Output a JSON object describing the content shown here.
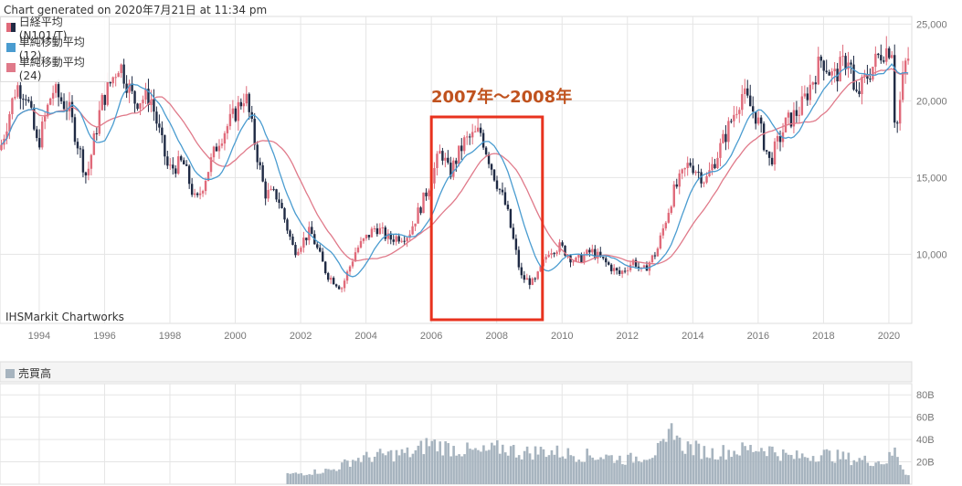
{
  "header": {
    "generated": "Chart generated on 2020年7月21日 at 11:34 pm"
  },
  "legend": [
    {
      "label": "日経平均(N101/T)",
      "color": "#1f2a44",
      "color2": "#e06a7a"
    },
    {
      "label": "単純移動平均 (12)",
      "color": "#4a9cd0"
    },
    {
      "label": "単純移動平均 (24)",
      "color": "#e07a8a"
    }
  ],
  "source": "IHSMarkit Chartworks",
  "annotation": {
    "text": "2007年〜2008年",
    "color": "#e8321e",
    "text_color": "#c0521e"
  },
  "volume_legend": "売買高",
  "colors": {
    "up": "#e06a7a",
    "down": "#1f2a44",
    "ma12": "#4a9cd0",
    "ma24": "#e07a8a",
    "volume": "#a7b4bf",
    "grid": "#e5e5e5"
  },
  "chart_data": [
    {
      "type": "candlestick",
      "title": "",
      "x_ticks": [
        "1994",
        "1996",
        "1998",
        "2000",
        "2002",
        "2004",
        "2006",
        "2008",
        "2010",
        "2012",
        "2014",
        "2016",
        "2018",
        "2020"
      ],
      "y_ticks": [
        "10,000",
        "15,000",
        "20,000",
        "25,000"
      ],
      "ylim": [
        5500,
        25500
      ],
      "xlim": [
        1992.8,
        2020.7
      ],
      "annotation_range": [
        2006.0,
        2009.4
      ],
      "price_anchors": [
        [
          1992.8,
          16800
        ],
        [
          1993.3,
          21000
        ],
        [
          1993.6,
          20500
        ],
        [
          1993.95,
          17000
        ],
        [
          1994.4,
          20700
        ],
        [
          1994.9,
          19500
        ],
        [
          1995.45,
          15000
        ],
        [
          1995.9,
          19800
        ],
        [
          1996.45,
          22500
        ],
        [
          1996.9,
          20000
        ],
        [
          1997.4,
          20300
        ],
        [
          1997.95,
          15500
        ],
        [
          1998.4,
          16000
        ],
        [
          1998.8,
          13300
        ],
        [
          1999.5,
          17500
        ],
        [
          1999.95,
          19000
        ],
        [
          2000.3,
          20500
        ],
        [
          2000.9,
          14000
        ],
        [
          2001.3,
          13800
        ],
        [
          2001.8,
          10200
        ],
        [
          2002.3,
          11500
        ],
        [
          2002.8,
          8700
        ],
        [
          2003.25,
          7800
        ],
        [
          2003.7,
          10300
        ],
        [
          2004.3,
          11800
        ],
        [
          2004.7,
          11000
        ],
        [
          2005.3,
          11300
        ],
        [
          2005.75,
          13500
        ],
        [
          2006.3,
          16800
        ],
        [
          2006.55,
          15200
        ],
        [
          2007.0,
          17300
        ],
        [
          2007.5,
          18000
        ],
        [
          2007.9,
          15300
        ],
        [
          2008.3,
          13000
        ],
        [
          2008.75,
          8500
        ],
        [
          2009.15,
          8100
        ],
        [
          2009.6,
          10300
        ],
        [
          2009.95,
          10500
        ],
        [
          2010.4,
          9500
        ],
        [
          2010.9,
          10200
        ],
        [
          2011.3,
          9500
        ],
        [
          2011.75,
          8700
        ],
        [
          2012.2,
          9600
        ],
        [
          2012.45,
          8800
        ],
        [
          2012.9,
          10200
        ],
        [
          2013.4,
          14000
        ],
        [
          2013.9,
          16000
        ],
        [
          2014.4,
          14800
        ],
        [
          2014.95,
          17500
        ],
        [
          2015.5,
          20500
        ],
        [
          2015.95,
          19000
        ],
        [
          2016.35,
          16000
        ],
        [
          2016.85,
          18500
        ],
        [
          2017.3,
          19500
        ],
        [
          2017.95,
          22800
        ],
        [
          2018.3,
          21500
        ],
        [
          2018.8,
          23000
        ],
        [
          2018.95,
          20000
        ],
        [
          2019.3,
          21500
        ],
        [
          2019.8,
          23300
        ],
        [
          2020.1,
          23500
        ],
        [
          2020.2,
          17500
        ],
        [
          2020.45,
          21800
        ],
        [
          2020.55,
          22800
        ]
      ]
    },
    {
      "type": "bar",
      "title": "",
      "y_ticks": [
        "20B",
        "40B",
        "60B",
        "80B"
      ],
      "ylim": [
        0,
        90
      ],
      "xlim": [
        1992.8,
        2020.7
      ],
      "volume_anchors": [
        [
          2001.8,
          9
        ],
        [
          2003.0,
          13
        ],
        [
          2003.6,
          22
        ],
        [
          2004.5,
          26
        ],
        [
          2005.5,
          28
        ],
        [
          2005.9,
          37
        ],
        [
          2006.5,
          33
        ],
        [
          2007.5,
          28
        ],
        [
          2008.2,
          33
        ],
        [
          2008.8,
          28
        ],
        [
          2009.5,
          30
        ],
        [
          2010.5,
          26
        ],
        [
          2011.3,
          25
        ],
        [
          2012.0,
          22
        ],
        [
          2012.7,
          27
        ],
        [
          2013.2,
          34
        ],
        [
          2013.4,
          55
        ],
        [
          2013.6,
          36
        ],
        [
          2014.5,
          28
        ],
        [
          2015.3,
          30
        ],
        [
          2016.2,
          33
        ],
        [
          2017.0,
          24
        ],
        [
          2018.0,
          27
        ],
        [
          2019.0,
          22
        ],
        [
          2019.9,
          20
        ],
        [
          2020.2,
          30
        ],
        [
          2020.5,
          10
        ]
      ]
    }
  ]
}
